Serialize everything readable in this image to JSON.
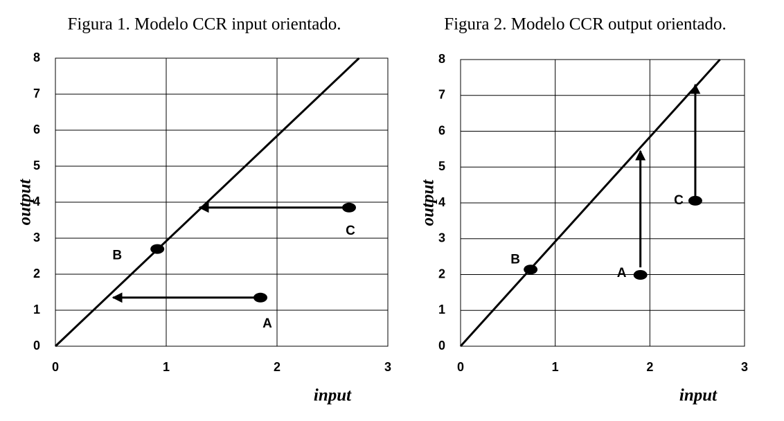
{
  "chart_data": [
    {
      "type": "scatter",
      "title": "Figura 1. Modelo CCR input orientado.",
      "xlabel": "input",
      "ylabel": "output",
      "xlim": [
        0,
        3
      ],
      "ylim": [
        0,
        8
      ],
      "xticks": [
        0,
        1,
        2,
        3
      ],
      "yticks": [
        0,
        1,
        2,
        3,
        4,
        5,
        6,
        7,
        8
      ],
      "grid": true,
      "color": "#000000",
      "points": {
        "labels": [
          "A",
          "B",
          "C"
        ],
        "x": [
          1.85,
          0.92,
          2.65
        ],
        "values": [
          1.35,
          2.7,
          3.85
        ]
      },
      "frontier": {
        "x": [
          0,
          2.74
        ],
        "values": [
          0,
          8
        ]
      },
      "arrows": [
        {
          "x": [
            2.65,
            1.3
          ],
          "values": [
            3.85,
            3.85
          ]
        },
        {
          "x": [
            1.85,
            0.52
          ],
          "values": [
            1.35,
            1.35
          ]
        }
      ]
    },
    {
      "type": "scatter",
      "title": "Figura 2. Modelo CCR output orientado.",
      "xlabel": "input",
      "ylabel": "output",
      "xlim": [
        0,
        3
      ],
      "ylim": [
        0,
        8
      ],
      "xticks": [
        0,
        1,
        2,
        3
      ],
      "yticks": [
        0,
        1,
        2,
        3,
        4,
        5,
        6,
        7,
        8
      ],
      "grid": true,
      "color": "#000000",
      "points": {
        "labels": [
          "A",
          "B",
          "C"
        ],
        "x": [
          1.9,
          0.74,
          2.48
        ],
        "values": [
          1.99,
          2.14,
          4.06
        ]
      },
      "frontier": {
        "x": [
          0,
          2.74
        ],
        "values": [
          0,
          8
        ]
      },
      "arrows": [
        {
          "x": [
            1.9,
            1.9
          ],
          "values": [
            2.2,
            5.45
          ]
        },
        {
          "x": [
            2.48,
            2.48
          ],
          "values": [
            4.06,
            7.3
          ]
        }
      ]
    }
  ]
}
